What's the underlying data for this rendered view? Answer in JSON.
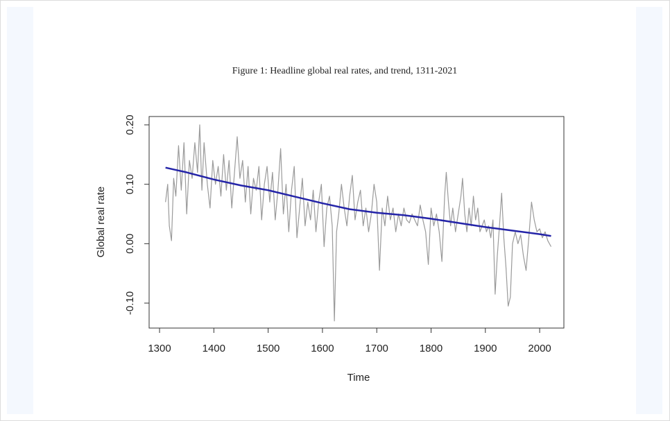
{
  "chart_data": {
    "type": "line",
    "title": "Figure 1: Headline global real rates, and trend, 1311-2021",
    "xlabel": "Time",
    "ylabel": "Global real rate",
    "xlim": [
      1280.8,
      2044.6
    ],
    "ylim": [
      -0.142,
      0.214
    ],
    "xticks": [
      1300,
      1400,
      1500,
      1600,
      1700,
      1800,
      1900,
      2000
    ],
    "yticks": [
      {
        "value": -0.1,
        "label": "-0.10"
      },
      {
        "value": 0,
        "label": "0.00"
      },
      {
        "value": 0.1,
        "label": "0.10"
      },
      {
        "value": 0.2,
        "label": "0.20"
      }
    ],
    "series": [
      {
        "color": "#9a9a9a",
        "x": [
          1311,
          1315,
          1318,
          1322,
          1326,
          1330,
          1335,
          1340,
          1345,
          1350,
          1355,
          1360,
          1365,
          1370,
          1374,
          1378,
          1382,
          1388,
          1393,
          1398,
          1403,
          1408,
          1413,
          1418,
          1423,
          1428,
          1433,
          1438,
          1443,
          1448,
          1453,
          1458,
          1463,
          1468,
          1473,
          1478,
          1483,
          1488,
          1493,
          1498,
          1503,
          1508,
          1513,
          1518,
          1523,
          1528,
          1533,
          1538,
          1543,
          1548,
          1553,
          1558,
          1563,
          1568,
          1573,
          1578,
          1583,
          1588,
          1593,
          1598,
          1603,
          1608,
          1613,
          1618,
          1622,
          1626,
          1630,
          1635,
          1640,
          1645,
          1650,
          1655,
          1660,
          1665,
          1670,
          1675,
          1680,
          1685,
          1690,
          1695,
          1700,
          1705,
          1710,
          1715,
          1720,
          1725,
          1730,
          1735,
          1740,
          1745,
          1750,
          1755,
          1760,
          1765,
          1770,
          1775,
          1780,
          1785,
          1790,
          1795,
          1800,
          1805,
          1810,
          1815,
          1820,
          1825,
          1828,
          1832,
          1836,
          1840,
          1845,
          1850,
          1855,
          1858,
          1862,
          1866,
          1870,
          1874,
          1878,
          1882,
          1886,
          1890,
          1894,
          1898,
          1902,
          1906,
          1910,
          1914,
          1918,
          1922,
          1926,
          1930,
          1934,
          1938,
          1942,
          1946,
          1950,
          1955,
          1960,
          1965,
          1970,
          1975,
          1980,
          1985,
          1990,
          1995,
          2000,
          2005,
          2010,
          2015,
          2021
        ],
        "values": [
          0.07,
          0.1,
          0.03,
          0.005,
          0.11,
          0.08,
          0.165,
          0.09,
          0.17,
          0.05,
          0.14,
          0.11,
          0.17,
          0.12,
          0.2,
          0.09,
          0.17,
          0.1,
          0.06,
          0.14,
          0.1,
          0.13,
          0.08,
          0.15,
          0.09,
          0.14,
          0.06,
          0.12,
          0.18,
          0.11,
          0.14,
          0.07,
          0.13,
          0.05,
          0.11,
          0.09,
          0.13,
          0.04,
          0.1,
          0.13,
          0.07,
          0.12,
          0.04,
          0.09,
          0.16,
          0.05,
          0.1,
          0.02,
          0.09,
          0.13,
          0.01,
          0.06,
          0.11,
          0.03,
          0.07,
          0.04,
          0.09,
          0.02,
          0.07,
          0.1,
          -0.005,
          0.06,
          0.08,
          0.03,
          -0.13,
          0.02,
          0.05,
          0.1,
          0.06,
          0.03,
          0.08,
          0.115,
          0.04,
          0.07,
          0.09,
          0.03,
          0.06,
          0.02,
          0.05,
          0.1,
          0.07,
          -0.045,
          0.06,
          0.03,
          0.08,
          0.04,
          0.06,
          0.02,
          0.05,
          0.03,
          0.06,
          0.04,
          0.035,
          0.05,
          0.04,
          0.03,
          0.065,
          0.04,
          0.02,
          -0.035,
          0.06,
          0.03,
          0.05,
          0.02,
          -0.03,
          0.08,
          0.12,
          0.07,
          0.03,
          0.06,
          0.02,
          0.05,
          0.08,
          0.11,
          0.05,
          0.02,
          0.06,
          0.03,
          0.08,
          0.04,
          0.06,
          0.02,
          0.03,
          0.04,
          0.02,
          0.03,
          0.01,
          0.04,
          -0.085,
          -0.02,
          0.03,
          0.085,
          0.01,
          -0.04,
          -0.105,
          -0.09,
          0.0,
          0.02,
          0.0,
          0.015,
          -0.02,
          -0.045,
          0.01,
          0.07,
          0.04,
          0.02,
          0.025,
          0.01,
          0.02,
          0.005,
          -0.005
        ]
      },
      {
        "color": "#2424a8",
        "x": [
          1311,
          1350,
          1400,
          1450,
          1500,
          1550,
          1600,
          1650,
          1700,
          1750,
          1800,
          1850,
          1900,
          1950,
          2000,
          2021
        ],
        "values": [
          0.128,
          0.12,
          0.108,
          0.098,
          0.09,
          0.079,
          0.068,
          0.058,
          0.052,
          0.048,
          0.042,
          0.035,
          0.028,
          0.022,
          0.016,
          0.013
        ]
      }
    ]
  }
}
